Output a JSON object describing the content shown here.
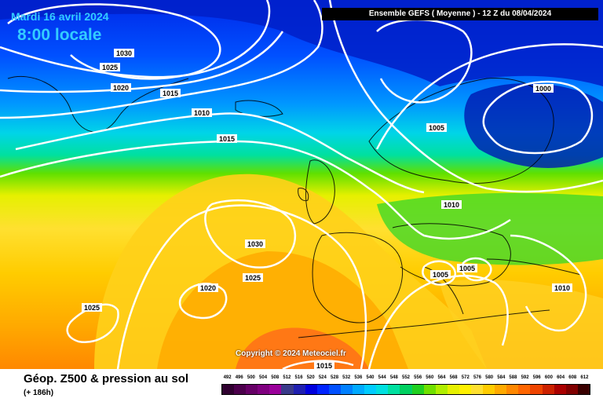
{
  "map": {
    "date": "Mardi 16 avril 2024",
    "local_time": "8:00 locale",
    "model_run": "Ensemble GEFS  ( Moyenne )  -  12 Z du 08/04/2024",
    "copyright": "Copyright © 2024 Meteociel.fr",
    "pressure_labels": [
      "1030",
      "1025",
      "1020",
      "1015",
      "1010",
      "1015",
      "1005",
      "1000",
      "1010",
      "1030",
      "1025",
      "1020",
      "1025",
      "1005",
      "1005",
      "1010",
      "1015"
    ]
  },
  "footer": {
    "field_title": "Géop. Z500 & pression au sol",
    "lead_time": "(+ 186h)"
  },
  "scale": {
    "values": [
      "492",
      "496",
      "500",
      "504",
      "508",
      "512",
      "516",
      "520",
      "524",
      "528",
      "532",
      "536",
      "540",
      "544",
      "548",
      "552",
      "556",
      "560",
      "564",
      "568",
      "572",
      "576",
      "580",
      "584",
      "588",
      "592",
      "596",
      "600",
      "604",
      "608",
      "612"
    ],
    "colors": [
      "#300030",
      "#4c004c",
      "#660066",
      "#7f007f",
      "#9a009a",
      "#3a3a8a",
      "#2020b0",
      "#0000dd",
      "#0024ff",
      "#0050ff",
      "#0080ff",
      "#00aaff",
      "#00ccff",
      "#00e0e0",
      "#00e0a0",
      "#00d060",
      "#20d020",
      "#70e000",
      "#b0ee00",
      "#e6f000",
      "#fff000",
      "#ffe030",
      "#ffcc00",
      "#ffaa00",
      "#ff8800",
      "#ff6600",
      "#ee4400",
      "#cc2200",
      "#aa0000",
      "#800000",
      "#3a0000"
    ]
  }
}
